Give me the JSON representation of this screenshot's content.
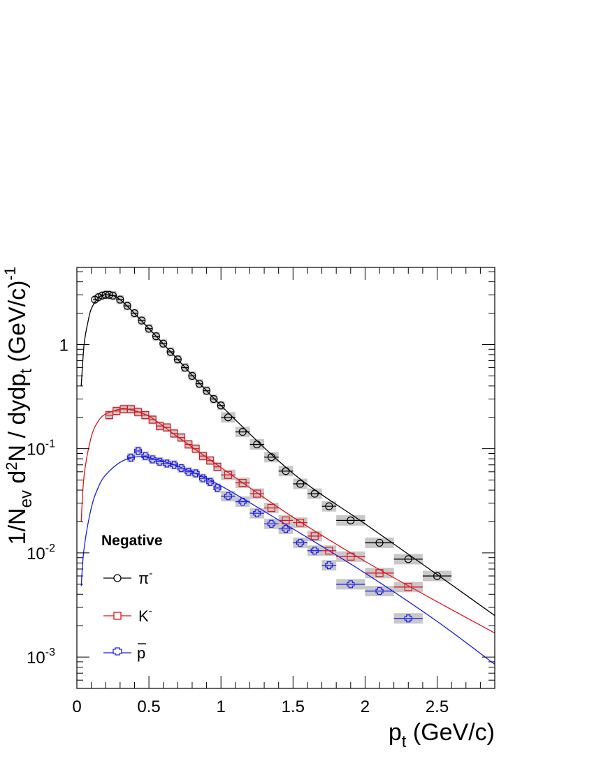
{
  "chart_data": {
    "type": "scatter",
    "xlabel": "p",
    "xlabel_sub": "t",
    "xlabel_unit": " (GeV/c)",
    "ylabel": {
      "a": "1/N",
      "b": "ev",
      "c": " d",
      "d": "2",
      "e": "N / dydp",
      "f": "t",
      "g": " (GeV/c)",
      "h": "-1"
    },
    "x_scale": "linear",
    "y_scale": "log",
    "xlim": [
      0,
      2.9
    ],
    "ylim": [
      0.0005,
      5.5
    ],
    "x_ticks": [
      "0",
      "0.5",
      "1",
      "1.5",
      "2",
      "2.5"
    ],
    "y_ticks": [
      {
        "label": "10",
        "exp": "-3"
      },
      {
        "label": "10",
        "exp": "-2"
      },
      {
        "label": "10",
        "exp": "-1"
      },
      {
        "label": "1",
        "exp": ""
      }
    ],
    "legend": {
      "position": "bottom-left",
      "title": "Negative",
      "entries": [
        {
          "name": "π",
          "sup": "-",
          "marker": "circle",
          "color": "#000000"
        },
        {
          "name": "K",
          "sup": "-",
          "marker": "square",
          "color": "#e0141c"
        },
        {
          "name": "p",
          "sup": "",
          "overline": true,
          "marker": "cross",
          "color": "#1b1bf0"
        }
      ]
    },
    "series": [
      {
        "name": "π-",
        "color": "#000000",
        "marker": "circle",
        "x": [
          0.125,
          0.15,
          0.175,
          0.2,
          0.225,
          0.25,
          0.3,
          0.35,
          0.4,
          0.45,
          0.5,
          0.55,
          0.6,
          0.65,
          0.7,
          0.75,
          0.8,
          0.85,
          0.9,
          0.95,
          1.0,
          1.05,
          1.15,
          1.25,
          1.35,
          1.45,
          1.55,
          1.65,
          1.75,
          1.9,
          2.1,
          2.3,
          2.5
        ],
        "y": [
          2.7,
          2.85,
          2.95,
          3.0,
          3.0,
          2.95,
          2.7,
          2.35,
          2.0,
          1.7,
          1.42,
          1.2,
          1.02,
          0.85,
          0.72,
          0.6,
          0.5,
          0.42,
          0.36,
          0.3,
          0.26,
          0.2,
          0.145,
          0.11,
          0.083,
          0.061,
          0.046,
          0.037,
          0.028,
          0.0205,
          0.0125,
          0.0087,
          0.006
        ],
        "x_err": [
          0.0125,
          0.0125,
          0.0125,
          0.0125,
          0.0125,
          0.025,
          0.025,
          0.025,
          0.025,
          0.025,
          0.025,
          0.025,
          0.025,
          0.025,
          0.025,
          0.025,
          0.025,
          0.025,
          0.025,
          0.025,
          0.025,
          0.05,
          0.05,
          0.05,
          0.05,
          0.05,
          0.05,
          0.05,
          0.05,
          0.1,
          0.1,
          0.1,
          0.1
        ]
      },
      {
        "name": "K-",
        "color": "#e0141c",
        "marker": "square",
        "x": [
          0.225,
          0.275,
          0.325,
          0.375,
          0.425,
          0.475,
          0.525,
          0.575,
          0.625,
          0.675,
          0.725,
          0.775,
          0.825,
          0.875,
          0.925,
          0.975,
          1.05,
          1.15,
          1.25,
          1.35,
          1.45,
          1.55,
          1.65,
          1.75,
          1.9,
          2.1,
          2.3
        ],
        "y": [
          0.21,
          0.23,
          0.24,
          0.24,
          0.225,
          0.21,
          0.19,
          0.165,
          0.16,
          0.14,
          0.128,
          0.11,
          0.1,
          0.085,
          0.077,
          0.067,
          0.056,
          0.047,
          0.037,
          0.027,
          0.0205,
          0.0195,
          0.0145,
          0.0105,
          0.0092,
          0.0064,
          0.0047
        ],
        "x_err": [
          0.025,
          0.025,
          0.025,
          0.025,
          0.025,
          0.025,
          0.025,
          0.025,
          0.025,
          0.025,
          0.025,
          0.025,
          0.025,
          0.025,
          0.025,
          0.025,
          0.05,
          0.05,
          0.05,
          0.05,
          0.05,
          0.05,
          0.05,
          0.05,
          0.1,
          0.1,
          0.1
        ]
      },
      {
        "name": "p̄",
        "color": "#1b1bf0",
        "marker": "cross",
        "x": [
          0.375,
          0.425,
          0.475,
          0.525,
          0.575,
          0.625,
          0.675,
          0.725,
          0.775,
          0.825,
          0.875,
          0.925,
          0.975,
          1.05,
          1.15,
          1.25,
          1.35,
          1.45,
          1.55,
          1.65,
          1.75,
          1.9,
          2.1,
          2.3
        ],
        "y": [
          0.082,
          0.095,
          0.085,
          0.079,
          0.075,
          0.072,
          0.07,
          0.065,
          0.06,
          0.058,
          0.052,
          0.048,
          0.042,
          0.035,
          0.031,
          0.024,
          0.019,
          0.017,
          0.0125,
          0.0105,
          0.0076,
          0.005,
          0.0043,
          0.00235
        ],
        "x_err": [
          0.025,
          0.025,
          0.025,
          0.025,
          0.025,
          0.025,
          0.025,
          0.025,
          0.025,
          0.025,
          0.025,
          0.025,
          0.025,
          0.05,
          0.05,
          0.05,
          0.05,
          0.05,
          0.05,
          0.05,
          0.05,
          0.1,
          0.1,
          0.1
        ]
      }
    ],
    "fits": [
      {
        "series": "π-",
        "color": "#000000",
        "x": [
          0.03,
          0.05,
          0.075,
          0.1,
          0.15,
          0.2,
          0.3,
          0.5,
          0.7,
          1.0,
          1.5,
          2.0,
          2.5,
          2.9
        ],
        "y": [
          0.4,
          1.0,
          1.6,
          2.2,
          2.8,
          3.0,
          2.7,
          1.42,
          0.72,
          0.26,
          0.058,
          0.019,
          0.0062,
          0.0025
        ]
      },
      {
        "series": "K-",
        "color": "#e0141c",
        "x": [
          0.03,
          0.05,
          0.1,
          0.15,
          0.2,
          0.3,
          0.35,
          0.5,
          0.7,
          1.0,
          1.5,
          2.0,
          2.5,
          2.9
        ],
        "y": [
          0.02,
          0.055,
          0.13,
          0.185,
          0.215,
          0.24,
          0.24,
          0.205,
          0.13,
          0.066,
          0.022,
          0.0083,
          0.0034,
          0.0017
        ]
      },
      {
        "series": "p̄",
        "color": "#1b1bf0",
        "x": [
          0.03,
          0.05,
          0.1,
          0.15,
          0.2,
          0.3,
          0.4,
          0.5,
          0.7,
          1.0,
          1.5,
          2.0,
          2.5,
          2.9
        ],
        "y": [
          0.0048,
          0.011,
          0.027,
          0.043,
          0.056,
          0.074,
          0.083,
          0.082,
          0.068,
          0.044,
          0.017,
          0.0064,
          0.0022,
          0.00085
        ]
      }
    ]
  }
}
